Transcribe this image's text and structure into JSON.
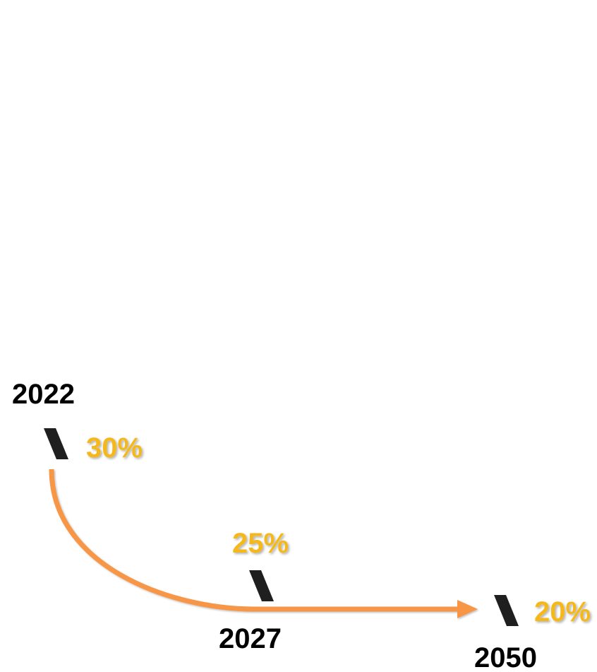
{
  "colors": {
    "curve": "#F79646",
    "percent": "#F5B81C",
    "year": "#000000",
    "marker": "#1F1F1F"
  },
  "milestones": [
    {
      "year": "2022",
      "value": "30%",
      "marker_icon": "slash-marker-icon"
    },
    {
      "year": "2027",
      "value": "25%",
      "marker_icon": "slash-marker-icon"
    },
    {
      "year": "2050",
      "value": "20%",
      "marker_icon": "slash-marker-icon"
    }
  ]
}
